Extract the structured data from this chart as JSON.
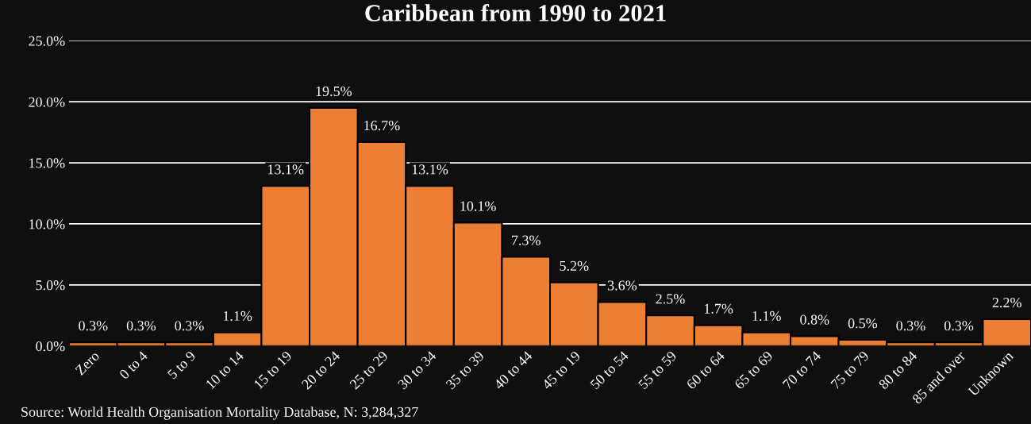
{
  "chart_data": {
    "type": "bar",
    "title": "Caribbean from 1990 to 2021",
    "categories": [
      "Zero",
      "0 to 4",
      "5 to 9",
      "10 to 14",
      "15 to 19",
      "20 to 24",
      "25 to 29",
      "30 to 34",
      "35 to 39",
      "40 to 44",
      "45 to 19",
      "50 to 54",
      "55 to 59",
      "60 to 64",
      "65 to 69",
      "70 to 74",
      "75 to 79",
      "80 to 84",
      "85 and over",
      "Unknown"
    ],
    "values": [
      0.3,
      0.3,
      0.3,
      1.1,
      13.1,
      19.5,
      16.7,
      13.1,
      10.1,
      7.3,
      5.2,
      3.6,
      2.5,
      1.7,
      1.1,
      0.8,
      0.5,
      0.3,
      0.3,
      2.2
    ],
    "value_labels": [
      "0.3%",
      "0.3%",
      "0.3%",
      "1.1%",
      "13.1%",
      "19.5%",
      "16.7%",
      "13.1%",
      "10.1%",
      "7.3%",
      "5.2%",
      "3.6%",
      "2.5%",
      "1.7%",
      "1.1%",
      "0.8%",
      "0.5%",
      "0.3%",
      "0.3%",
      "2.2%"
    ],
    "color": "#ed7f35",
    "ylim": [
      0,
      25
    ],
    "yticks": [
      {
        "value": 0,
        "label": "0.0%"
      },
      {
        "value": 5,
        "label": "5.0%"
      },
      {
        "value": 10,
        "label": "10.0%"
      },
      {
        "value": 15,
        "label": "15.0%"
      },
      {
        "value": 20,
        "label": "20.0%"
      },
      {
        "value": 25,
        "label": "25.0%"
      }
    ],
    "grid": "y",
    "annotations": [
      "Source: World Health Organisation Mortality Database, N: 3,284,327"
    ]
  }
}
